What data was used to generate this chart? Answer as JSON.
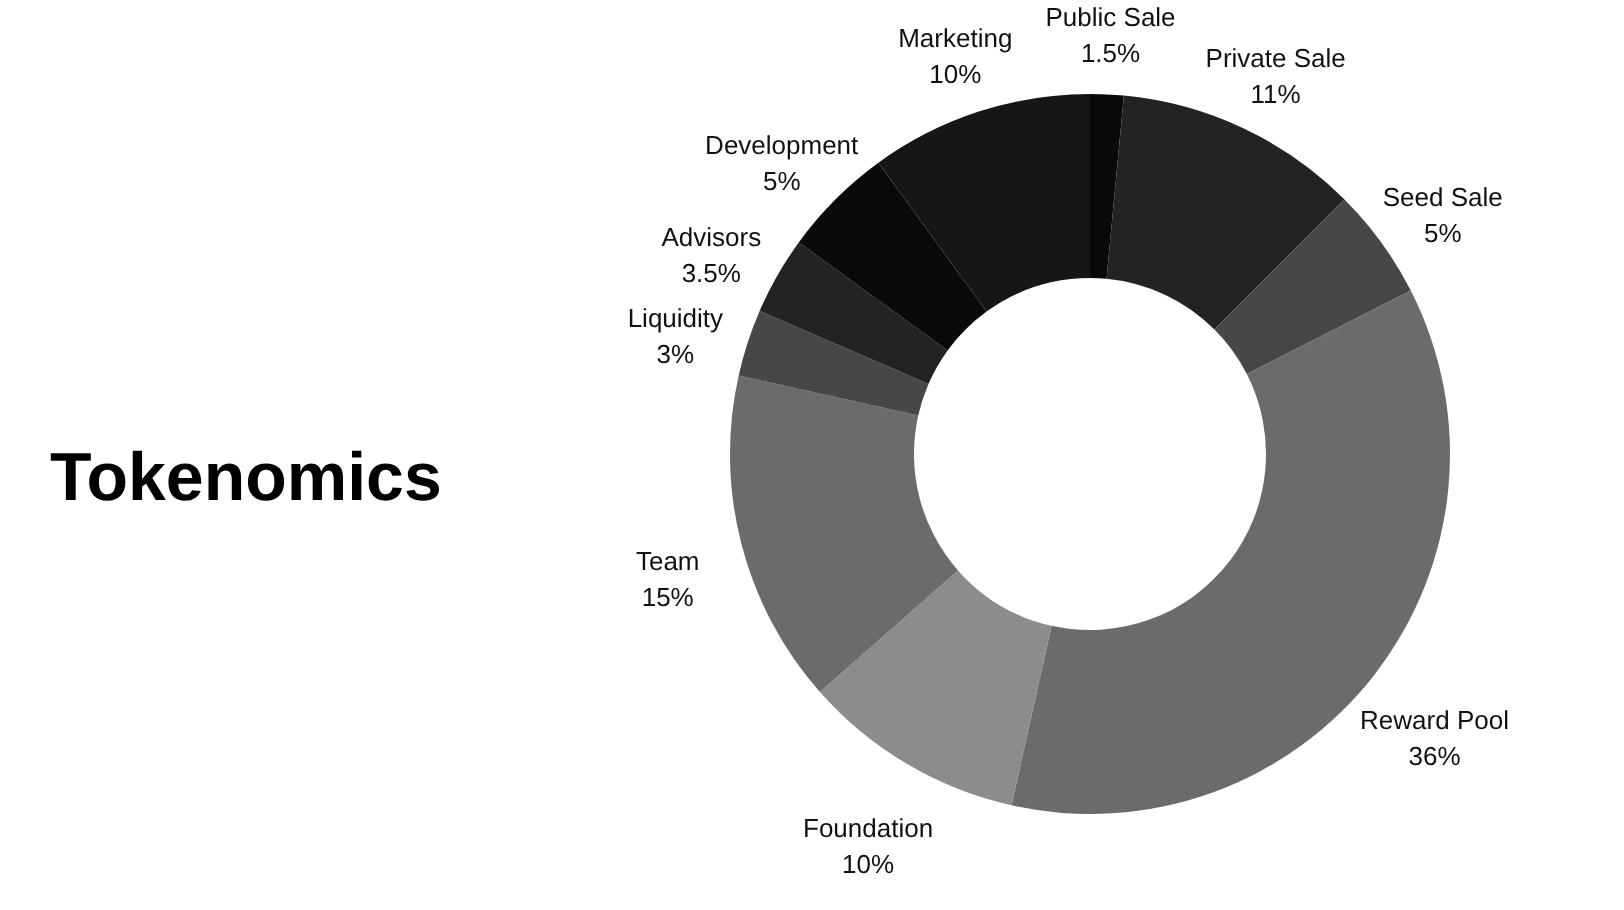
{
  "chart_data": {
    "type": "donut",
    "title": "Tokenomics",
    "categories": [
      "Public Sale",
      "Private Sale",
      "Seed Sale",
      "Reward Pool",
      "Foundation",
      "Team",
      "Liquidity",
      "Advisors",
      "Development",
      "Marketing"
    ],
    "values": [
      1.5,
      11,
      5,
      36,
      10,
      15,
      3,
      3.5,
      5,
      10
    ],
    "value_labels": [
      "1.5%",
      "11%",
      "5%",
      "36%",
      "10%",
      "15%",
      "3%",
      "3.5%",
      "5%",
      "10%"
    ],
    "colors": [
      "#0a0a0a",
      "#232323",
      "#474747",
      "#6b6b6b",
      "#8c8c8c",
      "#6b6b6b",
      "#474747",
      "#232323",
      "#0a0a0a",
      "#161616"
    ]
  }
}
